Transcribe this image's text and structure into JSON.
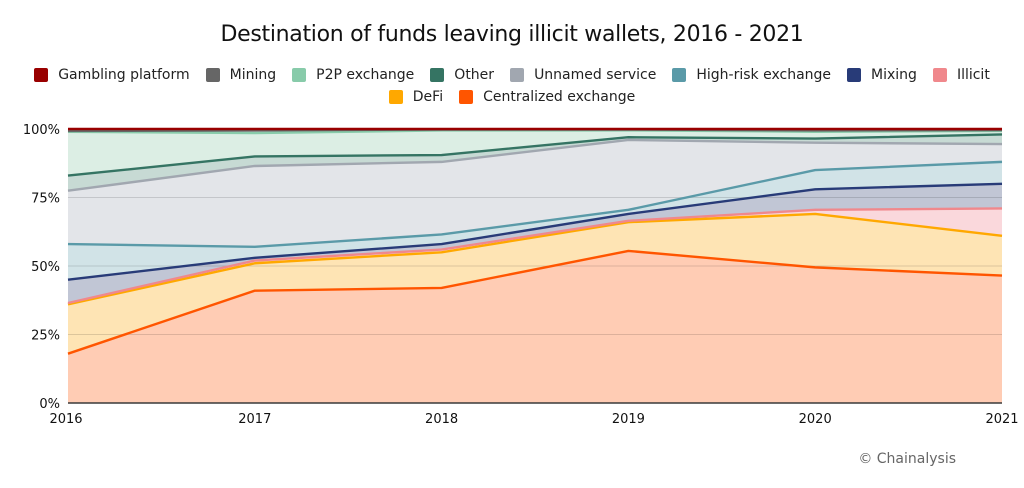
{
  "chart_data": {
    "type": "area",
    "stacked": true,
    "title": "Destination of funds leaving illicit wallets, 2016 - 2021",
    "xlabel": "",
    "ylabel": "",
    "x": [
      "2016",
      "2017",
      "2018",
      "2019",
      "2020",
      "2021"
    ],
    "ylim": [
      0,
      100
    ],
    "yticks": [
      "0%",
      "25%",
      "50%",
      "75%",
      "100%"
    ],
    "ytick_values": [
      0,
      25,
      50,
      75,
      100
    ],
    "grid": true,
    "legend_placement": "top",
    "series": [
      {
        "name": "Centralized exchange",
        "color": "#FF5500",
        "fill": "#FFC9B0",
        "values": [
          18,
          41,
          42,
          55.5,
          49.5,
          46.5
        ]
      },
      {
        "name": "DeFi",
        "color": "#FFA800",
        "fill": "#FEE3B0",
        "values": [
          18,
          10,
          13,
          10.5,
          19.5,
          14.5
        ]
      },
      {
        "name": "Illicit",
        "color": "#F0888C",
        "fill": "#FAD6DA",
        "values": [
          0.5,
          1,
          1,
          0.5,
          1.5,
          10
        ]
      },
      {
        "name": "Mixing",
        "color": "#283B78",
        "fill": "#BEC3D3",
        "values": [
          8.5,
          1,
          2,
          2.5,
          7.5,
          9
        ]
      },
      {
        "name": "High-risk exchange",
        "color": "#5A9AA8",
        "fill": "#CFE1E6",
        "values": [
          13,
          4,
          3.5,
          1.5,
          7,
          8
        ]
      },
      {
        "name": "Unnamed service",
        "color": "#A1A7B0",
        "fill": "#E1E4E8",
        "values": [
          19.5,
          29.5,
          26.5,
          25.5,
          10,
          6.5
        ]
      },
      {
        "name": "Other",
        "color": "#357463",
        "fill": "#C4D8D2",
        "values": [
          5.5,
          3.5,
          2.5,
          1,
          1.5,
          3.5
        ]
      },
      {
        "name": "P2P exchange",
        "color": "#88CBAA",
        "fill": "#DAEDE3",
        "values": [
          16,
          8.5,
          9,
          2.5,
          2.5,
          1.3
        ]
      },
      {
        "name": "Mining",
        "color": "#666666",
        "fill": "#D5D5D5",
        "values": [
          0.3,
          1,
          0.3,
          0.3,
          0.5,
          0.3
        ]
      },
      {
        "name": "Gambling platform",
        "color": "#990000",
        "fill": "#D6A3A3",
        "values": [
          0.7,
          0.5,
          0.2,
          0.2,
          0.5,
          0.4
        ]
      }
    ]
  },
  "legend": {
    "row1": [
      "Gambling platform",
      "Mining",
      "P2P exchange",
      "Other",
      "Unnamed service",
      "High-risk exchange",
      "Mixing",
      "Illicit"
    ],
    "row2": [
      "DeFi",
      "Centralized exchange"
    ]
  },
  "credit": "© Chainalysis"
}
